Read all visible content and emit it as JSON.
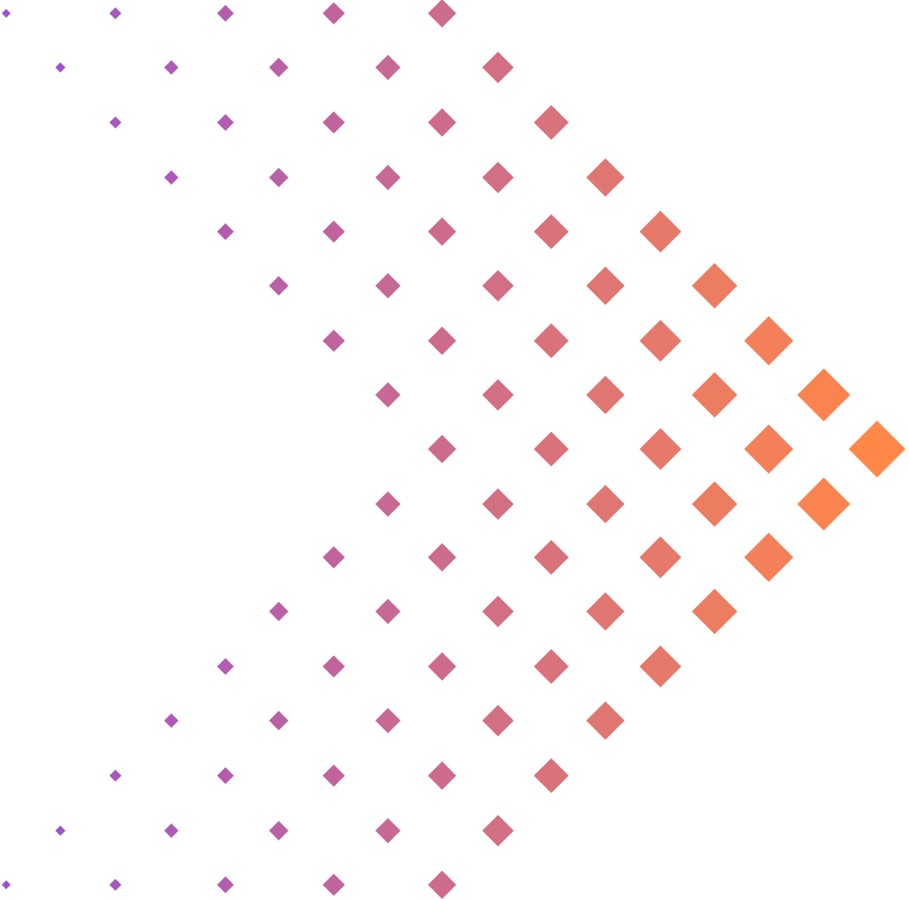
{
  "graphic": {
    "motif": "diamond",
    "colors": {
      "start": "#9b4fd1",
      "end": "#ff8747",
      "background": "#ffffff"
    }
  }
}
